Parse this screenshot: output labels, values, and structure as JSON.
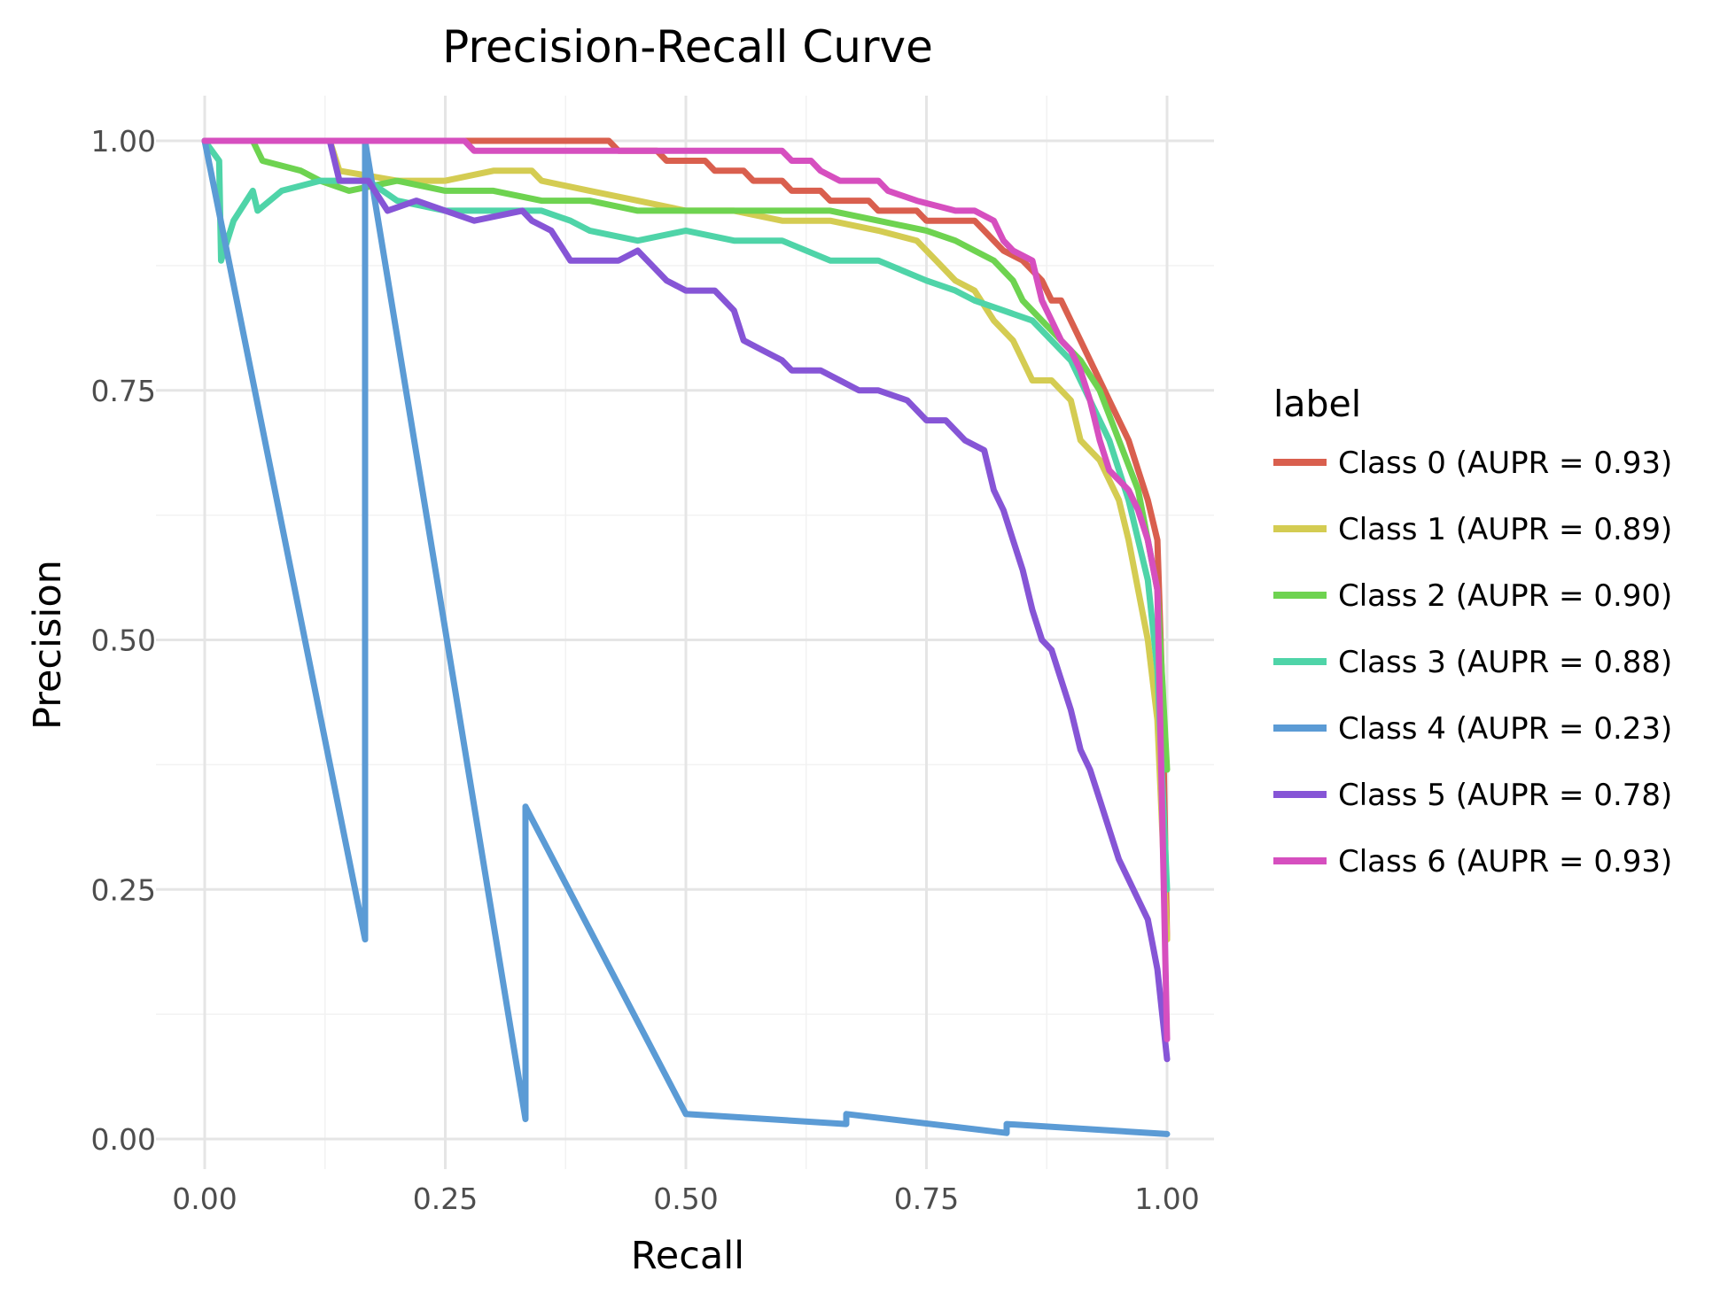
{
  "chart_data": {
    "type": "line",
    "title": "Precision-Recall Curve",
    "xlabel": "Recall",
    "ylabel": "Precision",
    "xlim": [
      0,
      1
    ],
    "ylim": [
      0,
      1
    ],
    "x_ticks": [
      "0.00",
      "0.25",
      "0.50",
      "0.75",
      "1.00"
    ],
    "y_ticks": [
      "0.00",
      "0.25",
      "0.50",
      "0.75",
      "1.00"
    ],
    "grid": true,
    "legend": {
      "title": "label",
      "position": "right"
    },
    "series": [
      {
        "name": "Class 0 (AUPR = 0.93)",
        "color": "#d95f4e",
        "points": [
          [
            0.0,
            1.0
          ],
          [
            0.42,
            1.0
          ],
          [
            0.43,
            0.99
          ],
          [
            0.47,
            0.99
          ],
          [
            0.48,
            0.98
          ],
          [
            0.52,
            0.98
          ],
          [
            0.53,
            0.97
          ],
          [
            0.56,
            0.97
          ],
          [
            0.57,
            0.96
          ],
          [
            0.6,
            0.96
          ],
          [
            0.61,
            0.95
          ],
          [
            0.64,
            0.95
          ],
          [
            0.65,
            0.94
          ],
          [
            0.69,
            0.94
          ],
          [
            0.7,
            0.93
          ],
          [
            0.74,
            0.93
          ],
          [
            0.75,
            0.92
          ],
          [
            0.8,
            0.92
          ],
          [
            0.81,
            0.91
          ],
          [
            0.82,
            0.9
          ],
          [
            0.83,
            0.89
          ],
          [
            0.85,
            0.88
          ],
          [
            0.86,
            0.87
          ],
          [
            0.87,
            0.86
          ],
          [
            0.88,
            0.84
          ],
          [
            0.89,
            0.84
          ],
          [
            0.9,
            0.82
          ],
          [
            0.91,
            0.8
          ],
          [
            0.92,
            0.78
          ],
          [
            0.93,
            0.76
          ],
          [
            0.94,
            0.74
          ],
          [
            0.95,
            0.72
          ],
          [
            0.96,
            0.7
          ],
          [
            0.97,
            0.67
          ],
          [
            0.98,
            0.64
          ],
          [
            0.99,
            0.6
          ],
          [
            0.995,
            0.45
          ],
          [
            1.0,
            0.2
          ]
        ]
      },
      {
        "name": "Class 1 (AUPR = 0.89)",
        "color": "#d4cc52",
        "points": [
          [
            0.0,
            1.0
          ],
          [
            0.13,
            1.0
          ],
          [
            0.14,
            0.97
          ],
          [
            0.2,
            0.96
          ],
          [
            0.25,
            0.96
          ],
          [
            0.3,
            0.97
          ],
          [
            0.34,
            0.97
          ],
          [
            0.35,
            0.96
          ],
          [
            0.4,
            0.95
          ],
          [
            0.45,
            0.94
          ],
          [
            0.5,
            0.93
          ],
          [
            0.55,
            0.93
          ],
          [
            0.6,
            0.92
          ],
          [
            0.65,
            0.92
          ],
          [
            0.7,
            0.91
          ],
          [
            0.74,
            0.9
          ],
          [
            0.76,
            0.88
          ],
          [
            0.78,
            0.86
          ],
          [
            0.8,
            0.85
          ],
          [
            0.82,
            0.82
          ],
          [
            0.84,
            0.8
          ],
          [
            0.85,
            0.78
          ],
          [
            0.86,
            0.76
          ],
          [
            0.88,
            0.76
          ],
          [
            0.9,
            0.74
          ],
          [
            0.91,
            0.7
          ],
          [
            0.93,
            0.68
          ],
          [
            0.95,
            0.64
          ],
          [
            0.96,
            0.6
          ],
          [
            0.97,
            0.55
          ],
          [
            0.98,
            0.5
          ],
          [
            0.99,
            0.42
          ],
          [
            1.0,
            0.2
          ]
        ]
      },
      {
        "name": "Class 2 (AUPR = 0.90)",
        "color": "#6ed350",
        "points": [
          [
            0.0,
            1.0
          ],
          [
            0.05,
            1.0
          ],
          [
            0.06,
            0.98
          ],
          [
            0.1,
            0.97
          ],
          [
            0.12,
            0.96
          ],
          [
            0.15,
            0.95
          ],
          [
            0.2,
            0.96
          ],
          [
            0.25,
            0.95
          ],
          [
            0.3,
            0.95
          ],
          [
            0.35,
            0.94
          ],
          [
            0.4,
            0.94
          ],
          [
            0.45,
            0.93
          ],
          [
            0.5,
            0.93
          ],
          [
            0.55,
            0.93
          ],
          [
            0.6,
            0.93
          ],
          [
            0.65,
            0.93
          ],
          [
            0.7,
            0.92
          ],
          [
            0.75,
            0.91
          ],
          [
            0.78,
            0.9
          ],
          [
            0.8,
            0.89
          ],
          [
            0.82,
            0.88
          ],
          [
            0.84,
            0.86
          ],
          [
            0.85,
            0.84
          ],
          [
            0.87,
            0.82
          ],
          [
            0.89,
            0.8
          ],
          [
            0.91,
            0.78
          ],
          [
            0.93,
            0.75
          ],
          [
            0.95,
            0.7
          ],
          [
            0.97,
            0.65
          ],
          [
            0.98,
            0.6
          ],
          [
            0.99,
            0.55
          ],
          [
            1.0,
            0.37
          ]
        ]
      },
      {
        "name": "Class 3 (AUPR = 0.88)",
        "color": "#4fd4a8",
        "points": [
          [
            0.0,
            1.0
          ],
          [
            0.015,
            0.98
          ],
          [
            0.017,
            0.88
          ],
          [
            0.03,
            0.92
          ],
          [
            0.05,
            0.95
          ],
          [
            0.055,
            0.93
          ],
          [
            0.08,
            0.95
          ],
          [
            0.12,
            0.96
          ],
          [
            0.17,
            0.96
          ],
          [
            0.2,
            0.94
          ],
          [
            0.25,
            0.93
          ],
          [
            0.3,
            0.93
          ],
          [
            0.35,
            0.93
          ],
          [
            0.38,
            0.92
          ],
          [
            0.4,
            0.91
          ],
          [
            0.45,
            0.9
          ],
          [
            0.5,
            0.91
          ],
          [
            0.55,
            0.9
          ],
          [
            0.6,
            0.9
          ],
          [
            0.65,
            0.88
          ],
          [
            0.7,
            0.88
          ],
          [
            0.75,
            0.86
          ],
          [
            0.78,
            0.85
          ],
          [
            0.8,
            0.84
          ],
          [
            0.83,
            0.83
          ],
          [
            0.86,
            0.82
          ],
          [
            0.88,
            0.8
          ],
          [
            0.9,
            0.78
          ],
          [
            0.92,
            0.74
          ],
          [
            0.94,
            0.7
          ],
          [
            0.96,
            0.64
          ],
          [
            0.98,
            0.56
          ],
          [
            0.99,
            0.47
          ],
          [
            1.0,
            0.25
          ]
        ]
      },
      {
        "name": "Class 4 (AUPR = 0.23)",
        "color": "#5b9bd5",
        "points": [
          [
            0.0,
            1.0
          ],
          [
            0.1667,
            0.2
          ],
          [
            0.1667,
            1.0
          ],
          [
            0.3333,
            0.02
          ],
          [
            0.3333,
            0.333
          ],
          [
            0.5,
            0.025
          ],
          [
            0.6667,
            0.015
          ],
          [
            0.6667,
            0.025
          ],
          [
            0.8333,
            0.006
          ],
          [
            0.8333,
            0.015
          ],
          [
            1.0,
            0.005
          ]
        ]
      },
      {
        "name": "Class 5 (AUPR = 0.78)",
        "color": "#8655d6",
        "points": [
          [
            0.0,
            1.0
          ],
          [
            0.13,
            1.0
          ],
          [
            0.14,
            0.96
          ],
          [
            0.17,
            0.96
          ],
          [
            0.19,
            0.93
          ],
          [
            0.22,
            0.94
          ],
          [
            0.25,
            0.93
          ],
          [
            0.28,
            0.92
          ],
          [
            0.33,
            0.93
          ],
          [
            0.34,
            0.92
          ],
          [
            0.36,
            0.91
          ],
          [
            0.38,
            0.88
          ],
          [
            0.4,
            0.88
          ],
          [
            0.43,
            0.88
          ],
          [
            0.45,
            0.89
          ],
          [
            0.48,
            0.86
          ],
          [
            0.5,
            0.85
          ],
          [
            0.53,
            0.85
          ],
          [
            0.55,
            0.83
          ],
          [
            0.56,
            0.8
          ],
          [
            0.58,
            0.79
          ],
          [
            0.6,
            0.78
          ],
          [
            0.61,
            0.77
          ],
          [
            0.64,
            0.77
          ],
          [
            0.66,
            0.76
          ],
          [
            0.68,
            0.75
          ],
          [
            0.7,
            0.75
          ],
          [
            0.73,
            0.74
          ],
          [
            0.75,
            0.72
          ],
          [
            0.77,
            0.72
          ],
          [
            0.79,
            0.7
          ],
          [
            0.81,
            0.69
          ],
          [
            0.82,
            0.65
          ],
          [
            0.83,
            0.63
          ],
          [
            0.84,
            0.6
          ],
          [
            0.85,
            0.57
          ],
          [
            0.86,
            0.53
          ],
          [
            0.87,
            0.5
          ],
          [
            0.88,
            0.49
          ],
          [
            0.89,
            0.46
          ],
          [
            0.9,
            0.43
          ],
          [
            0.91,
            0.39
          ],
          [
            0.92,
            0.37
          ],
          [
            0.93,
            0.34
          ],
          [
            0.94,
            0.31
          ],
          [
            0.95,
            0.28
          ],
          [
            0.96,
            0.26
          ],
          [
            0.97,
            0.24
          ],
          [
            0.98,
            0.22
          ],
          [
            0.99,
            0.17
          ],
          [
            1.0,
            0.08
          ]
        ]
      },
      {
        "name": "Class 6 (AUPR = 0.93)",
        "color": "#d64fbf",
        "points": [
          [
            0.0,
            1.0
          ],
          [
            0.27,
            1.0
          ],
          [
            0.28,
            0.99
          ],
          [
            0.35,
            0.99
          ],
          [
            0.4,
            0.99
          ],
          [
            0.5,
            0.99
          ],
          [
            0.6,
            0.99
          ],
          [
            0.61,
            0.98
          ],
          [
            0.63,
            0.98
          ],
          [
            0.64,
            0.97
          ],
          [
            0.66,
            0.96
          ],
          [
            0.7,
            0.96
          ],
          [
            0.71,
            0.95
          ],
          [
            0.74,
            0.94
          ],
          [
            0.78,
            0.93
          ],
          [
            0.8,
            0.93
          ],
          [
            0.82,
            0.92
          ],
          [
            0.83,
            0.9
          ],
          [
            0.84,
            0.89
          ],
          [
            0.86,
            0.88
          ],
          [
            0.87,
            0.84
          ],
          [
            0.88,
            0.82
          ],
          [
            0.89,
            0.8
          ],
          [
            0.9,
            0.79
          ],
          [
            0.91,
            0.77
          ],
          [
            0.92,
            0.74
          ],
          [
            0.93,
            0.7
          ],
          [
            0.94,
            0.67
          ],
          [
            0.96,
            0.65
          ],
          [
            0.97,
            0.63
          ],
          [
            0.98,
            0.6
          ],
          [
            0.99,
            0.55
          ],
          [
            1.0,
            0.1
          ]
        ]
      }
    ]
  }
}
